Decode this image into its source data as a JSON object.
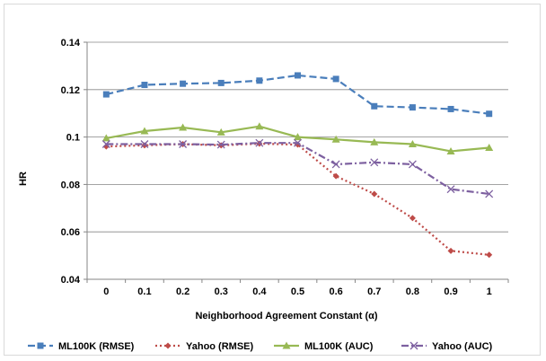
{
  "chart_data": {
    "type": "line",
    "title": "",
    "xlabel": "Neighborhood Agreement Constant (α)",
    "ylabel": "HR",
    "x": [
      0,
      0.1,
      0.2,
      0.3,
      0.4,
      0.5,
      0.6,
      0.7,
      0.8,
      0.9,
      1
    ],
    "x_tick_labels": [
      "0",
      "0.1",
      "0.2",
      "0.3",
      "0.4",
      "0.5",
      "0.6",
      "0.7",
      "0.8",
      "0.9",
      "1"
    ],
    "ylim": [
      0.04,
      0.14
    ],
    "y_ticks": [
      0.04,
      0.06,
      0.08,
      0.1,
      0.12,
      0.14
    ],
    "y_tick_labels": [
      "0.04",
      "0.06",
      "0.08",
      "0.1",
      "0.12",
      "0.14"
    ],
    "grid": "horizontal",
    "legend_position": "bottom",
    "series": [
      {
        "name": "ML100K (RMSE)",
        "values": [
          0.118,
          0.122,
          0.1225,
          0.1228,
          0.1238,
          0.126,
          0.1245,
          0.113,
          0.1125,
          0.1118,
          0.1098
        ],
        "color": "#4a7ebb",
        "marker": "square",
        "dash": "dashed"
      },
      {
        "name": "Yahoo (RMSE)",
        "values": [
          0.096,
          0.0965,
          0.097,
          0.0965,
          0.0972,
          0.0968,
          0.0835,
          0.076,
          0.0658,
          0.052,
          0.0503
        ],
        "color": "#be4b48",
        "marker": "diamond",
        "dash": "dotted"
      },
      {
        "name": "ML100K (AUC)",
        "values": [
          0.0995,
          0.1025,
          0.104,
          0.102,
          0.1045,
          0.1,
          0.099,
          0.0978,
          0.097,
          0.094,
          0.0955
        ],
        "color": "#98b954",
        "marker": "triangle",
        "dash": "solid"
      },
      {
        "name": "Yahoo (AUC)",
        "values": [
          0.097,
          0.097,
          0.097,
          0.0968,
          0.0975,
          0.0975,
          0.0885,
          0.0893,
          0.0885,
          0.078,
          0.076
        ],
        "color": "#7d60a0",
        "marker": "x",
        "dash": "dashdot"
      }
    ]
  }
}
